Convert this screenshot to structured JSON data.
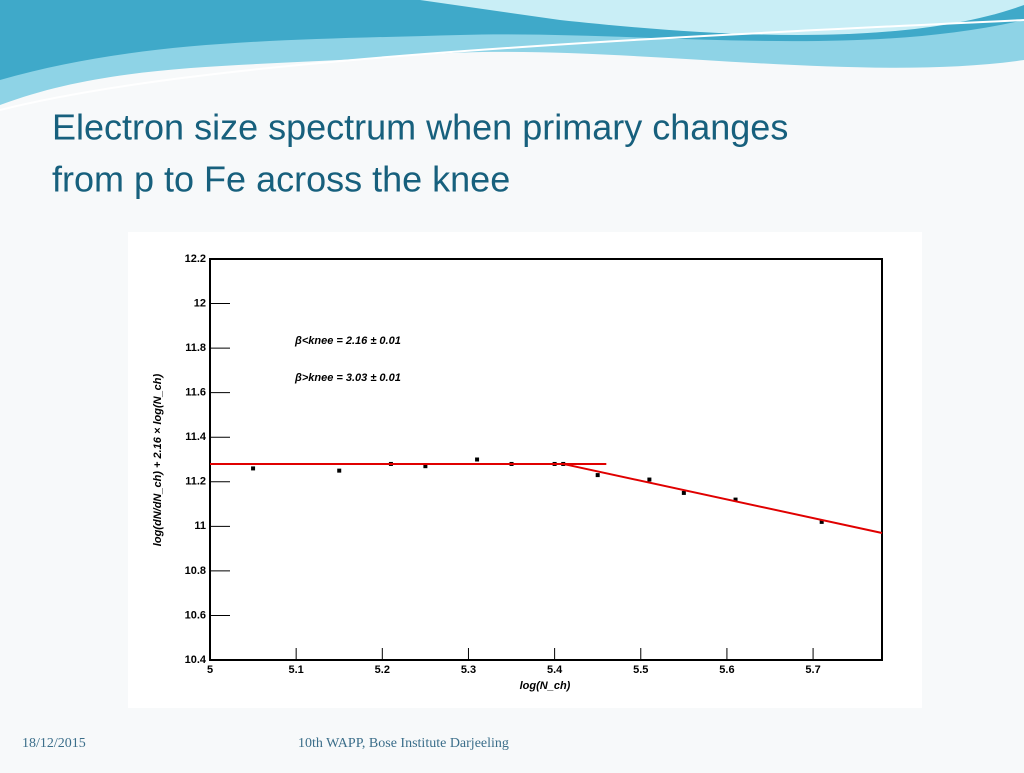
{
  "slide": {
    "title_lines": [
      "Electron size spectrum when primary changes",
      "from p to Fe across the knee"
    ]
  },
  "footer": {
    "date": "18/12/2015",
    "event": "10th WAPP, Bose Institute Darjeeling"
  },
  "chart_data": {
    "type": "scatter",
    "x_label": "log(N_ch)",
    "y_label": "log(dN/dN_ch) + 2.16 × log(N_ch)",
    "annotations": [
      "β<knee = 2.16 ± 0.01",
      "β>knee = 3.03 ± 0.01"
    ],
    "xlim": [
      5,
      5.78
    ],
    "xticks": [
      5,
      5.1,
      5.2,
      5.3,
      5.4,
      5.5,
      5.6,
      5.7
    ],
    "ylim": [
      10.4,
      12.2
    ],
    "yticks": [
      10.4,
      10.6,
      10.8,
      11,
      11.2,
      11.4,
      11.6,
      11.8,
      12,
      12.2
    ],
    "series": [
      {
        "style": "markers",
        "color": "#000000",
        "x": [
          5.05,
          5.15,
          5.21,
          5.25,
          5.31,
          5.35,
          5.4,
          5.41,
          5.45,
          5.51,
          5.55,
          5.61,
          5.71
        ],
        "values": [
          11.26,
          11.25,
          11.28,
          11.27,
          11.3,
          11.28,
          11.28,
          11.28,
          11.23,
          11.21,
          11.15,
          11.12,
          11.02
        ]
      },
      {
        "style": "line",
        "color": "#e00000",
        "x": [
          5,
          5.46
        ],
        "values": [
          11.28,
          11.28
        ]
      },
      {
        "style": "line",
        "color": "#e00000",
        "x": [
          5.41,
          5.78
        ],
        "values": [
          11.28,
          10.97
        ]
      }
    ]
  }
}
